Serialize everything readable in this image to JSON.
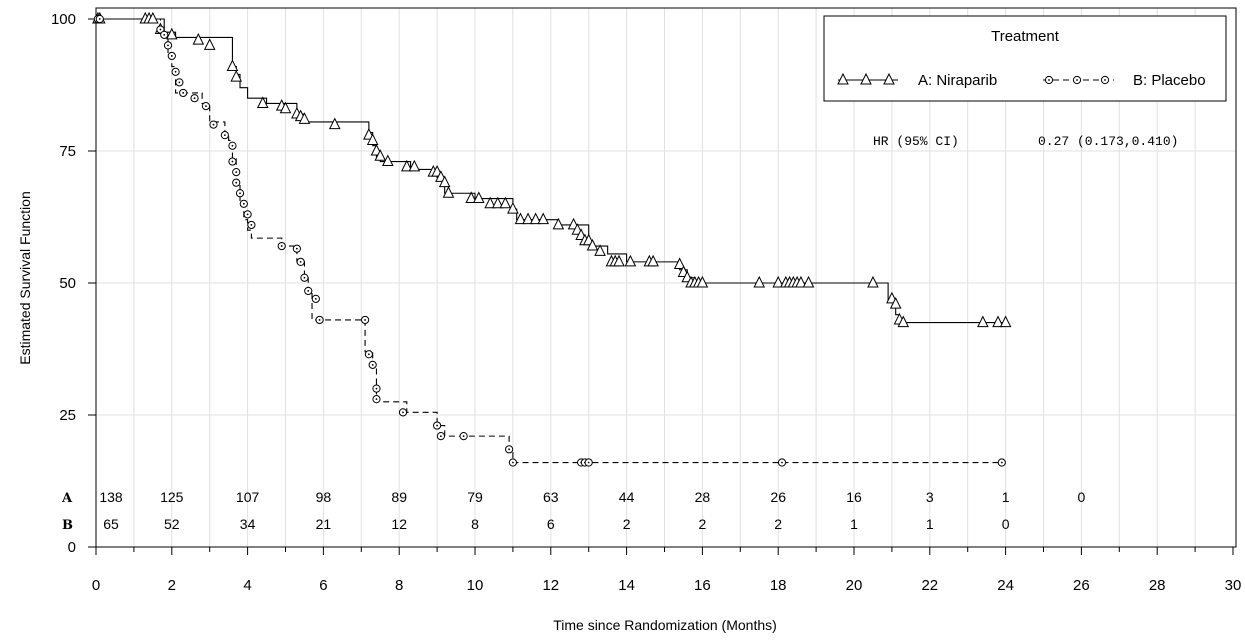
{
  "chart_data": {
    "type": "line",
    "xlabel": "Time since Randomization (Months)",
    "ylabel": "Estimated Survival Function",
    "xlim": [
      0,
      30
    ],
    "ylim": [
      0,
      100
    ],
    "x_ticks": [
      "0",
      "2",
      "4",
      "6",
      "8",
      "10",
      "12",
      "14",
      "16",
      "18",
      "20",
      "22",
      "24",
      "26",
      "28",
      "30"
    ],
    "y_ticks": [
      "0",
      "25",
      "50",
      "75",
      "100"
    ],
    "grid": true,
    "legend": {
      "title": "Treatment",
      "position": "top-right",
      "entries": [
        "A: Niraparib",
        "B: Placebo"
      ]
    },
    "annotation": {
      "hr_label": "HR (95% CI)",
      "hr_value": "0.27 (0.173,0.410)"
    },
    "series": [
      {
        "name": "A: Niraparib",
        "marker": "triangle",
        "line": "solid",
        "x": [
          0,
          1.8,
          2.1,
          3.6,
          3.7,
          3.8,
          4.0,
          4.5,
          5.3,
          5.5,
          7.2,
          7.3,
          7.4,
          7.5,
          8.3,
          9.0,
          9.2,
          10.0,
          11.0,
          11.1,
          12.2,
          13.0,
          13.1,
          13.5,
          14.0,
          15.4,
          15.6,
          15.8,
          20.9,
          21.1,
          21.2
        ],
        "y": [
          100,
          97.5,
          96.5,
          91,
          89.5,
          87,
          85,
          84,
          82,
          80.5,
          78.5,
          76,
          74,
          73,
          71.5,
          70,
          67,
          66,
          64,
          62,
          61,
          58,
          57,
          55.5,
          54,
          52.5,
          51,
          50,
          46.5,
          44,
          42.5
        ]
      },
      {
        "name": "B: Placebo",
        "marker": "circle",
        "line": "dashed",
        "x": [
          0,
          1.7,
          1.8,
          1.9,
          2.0,
          2.1,
          2.8,
          3.0,
          3.4,
          3.5,
          3.6,
          3.7,
          3.8,
          3.9,
          4.0,
          4.1,
          4.9,
          5.3,
          5.5,
          5.6,
          5.7,
          7.1,
          7.3,
          7.4,
          8.2,
          9.0,
          9.2,
          10.9,
          11.0
        ],
        "y": [
          100,
          98,
          96.5,
          93,
          91,
          86,
          84,
          80.5,
          78,
          77,
          73.5,
          69,
          65.5,
          62,
          60,
          58.5,
          57,
          54,
          51,
          48.5,
          43,
          37,
          34.5,
          27.5,
          25.5,
          23,
          21,
          18,
          16
        ]
      }
    ],
    "censor_marks": {
      "A: Niraparib": {
        "x": [
          0.05,
          0.1,
          1.3,
          1.4,
          1.5,
          1.7,
          2.0,
          2.7,
          3.0,
          3.6,
          3.7,
          4.4,
          4.9,
          5.0,
          5.3,
          5.4,
          5.5,
          6.3,
          7.2,
          7.3,
          7.4,
          7.5,
          7.7,
          8.2,
          8.4,
          8.9,
          9.0,
          9.1,
          9.2,
          9.3,
          9.9,
          10.1,
          10.4,
          10.6,
          10.8,
          11.0,
          11.2,
          11.4,
          11.6,
          11.8,
          12.2,
          12.6,
          12.7,
          12.8,
          12.9,
          13.0,
          13.1,
          13.3,
          13.6,
          13.7,
          13.8,
          14.1,
          14.6,
          14.7,
          15.4,
          15.5,
          15.6,
          15.7,
          15.8,
          15.9,
          16.0,
          17.5,
          18.0,
          18.2,
          18.3,
          18.4,
          18.5,
          18.6,
          18.8,
          20.5,
          21.0,
          21.1,
          21.2,
          21.3,
          23.4,
          23.8,
          24.0
        ],
        "y": [
          100,
          100,
          100,
          100,
          100,
          98,
          97,
          96,
          95,
          91,
          89,
          84,
          83.5,
          83,
          82,
          81.5,
          81,
          80,
          78,
          77,
          75,
          74,
          73,
          72,
          72,
          71,
          71,
          70,
          69,
          67,
          66,
          66,
          65,
          65,
          65,
          64,
          62,
          62,
          62,
          62,
          61,
          61,
          60,
          59,
          58,
          58,
          57,
          56,
          54,
          54,
          54,
          54,
          54,
          54,
          53.5,
          52,
          51,
          50,
          50,
          50,
          50,
          50,
          50,
          50,
          50,
          50,
          50,
          50,
          50,
          50,
          47,
          46,
          43,
          42.5,
          42.5,
          42.5,
          42.5
        ]
      },
      "B: Placebo": {
        "x": [
          0.05,
          0.1,
          1.7,
          1.8,
          1.9,
          2.0,
          2.1,
          2.2,
          2.3,
          2.6,
          2.9,
          3.1,
          3.4,
          3.6,
          3.6,
          3.7,
          3.7,
          3.8,
          3.9,
          4.0,
          4.1,
          4.9,
          5.3,
          5.4,
          5.5,
          5.6,
          5.8,
          5.9,
          7.1,
          7.2,
          7.3,
          7.4,
          7.4,
          8.1,
          9.0,
          9.1,
          9.7,
          10.9,
          11.0,
          12.8,
          12.9,
          13.0,
          18.1,
          23.9
        ],
        "y": [
          100,
          100,
          98,
          97,
          95,
          93,
          90,
          88,
          86,
          85,
          83.5,
          80,
          78,
          76,
          73,
          71,
          69,
          67,
          65,
          63,
          61,
          57,
          56.5,
          54,
          51,
          48.5,
          47,
          43,
          43,
          36.5,
          34.5,
          30,
          28,
          25.5,
          23,
          21,
          21,
          18.5,
          16,
          16,
          16,
          16,
          16,
          16
        ]
      }
    },
    "number_at_risk": {
      "time_points": [
        0,
        2,
        4,
        6,
        8,
        10,
        12,
        14,
        16,
        18,
        20,
        22,
        24,
        26
      ],
      "rows": [
        {
          "label": "A",
          "values": [
            "138",
            "125",
            "107",
            "98",
            "89",
            "79",
            "63",
            "44",
            "28",
            "26",
            "16",
            "3",
            "1",
            "0"
          ]
        },
        {
          "label": "B",
          "values": [
            "65",
            "52",
            "34",
            "21",
            "12",
            "8",
            "6",
            "2",
            "2",
            "2",
            "1",
            "1",
            "0"
          ]
        }
      ]
    },
    "colors": {
      "line": "#000000",
      "grid": "#e0e0e0",
      "risk_highlight": "#c0392b"
    }
  }
}
